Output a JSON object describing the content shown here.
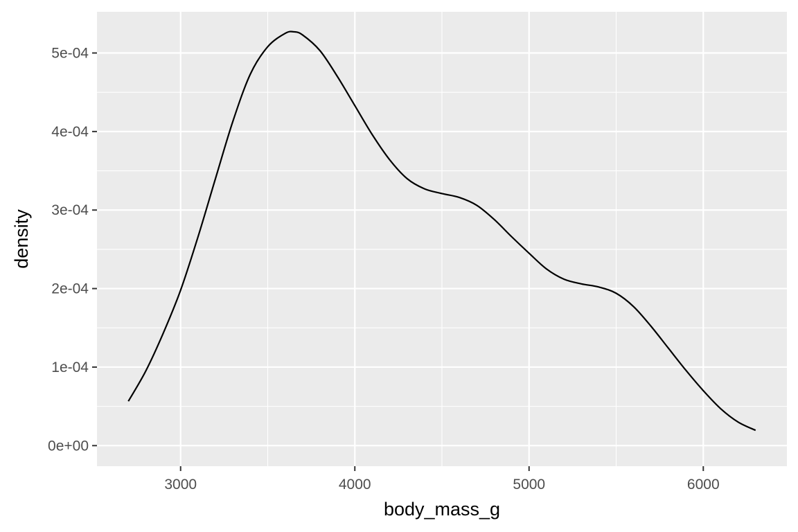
{
  "chart_data": {
    "type": "line",
    "title": "",
    "xlabel": "body_mass_g",
    "ylabel": "density",
    "xlim": [
      2520,
      6480
    ],
    "ylim": [
      -2.62e-05,
      0.0005525
    ],
    "x_ticks": [
      3000,
      4000,
      5000,
      6000
    ],
    "x_tick_labels": [
      "3000",
      "4000",
      "5000",
      "6000"
    ],
    "x_minor_ticks": [
      3500,
      4500,
      5500
    ],
    "y_ticks": [
      0,
      0.0001,
      0.0002,
      0.0003,
      0.0004,
      0.0005
    ],
    "y_tick_labels": [
      "0e+00",
      "1e-04",
      "2e-04",
      "3e-04",
      "4e-04",
      "5e-04"
    ],
    "y_minor_ticks": [
      5e-05,
      0.00015,
      0.00025,
      0.00035,
      0.00045
    ],
    "grid": true,
    "panel_background": "#ebebeb",
    "grid_color": "#ffffff",
    "line_color": "#000000",
    "series": [
      {
        "x": [
          2700,
          2800,
          2900,
          3000,
          3100,
          3200,
          3300,
          3400,
          3500,
          3600,
          3650,
          3700,
          3800,
          3900,
          4000,
          4100,
          4200,
          4300,
          4400,
          4500,
          4600,
          4700,
          4800,
          4900,
          5000,
          5100,
          5200,
          5300,
          5400,
          5500,
          5600,
          5700,
          5800,
          5900,
          6000,
          6100,
          6200,
          6300
        ],
        "y": [
          5.65e-05,
          9.5e-05,
          0.000143,
          0.000198,
          0.000266,
          0.00034,
          0.000413,
          0.000473,
          0.000508,
          0.000525,
          0.000527,
          0.000523,
          0.000503,
          0.00047,
          0.000433,
          0.000396,
          0.000364,
          0.00034,
          0.000327,
          0.000321,
          0.000316,
          0.000306,
          0.000288,
          0.000266,
          0.000245,
          0.000225,
          0.000212,
          0.000206,
          0.000202,
          0.000194,
          0.000177,
          0.000152,
          0.000124,
          9.6e-05,
          7e-05,
          4.7e-05,
          3e-05,
          1.95e-05
        ]
      }
    ]
  }
}
